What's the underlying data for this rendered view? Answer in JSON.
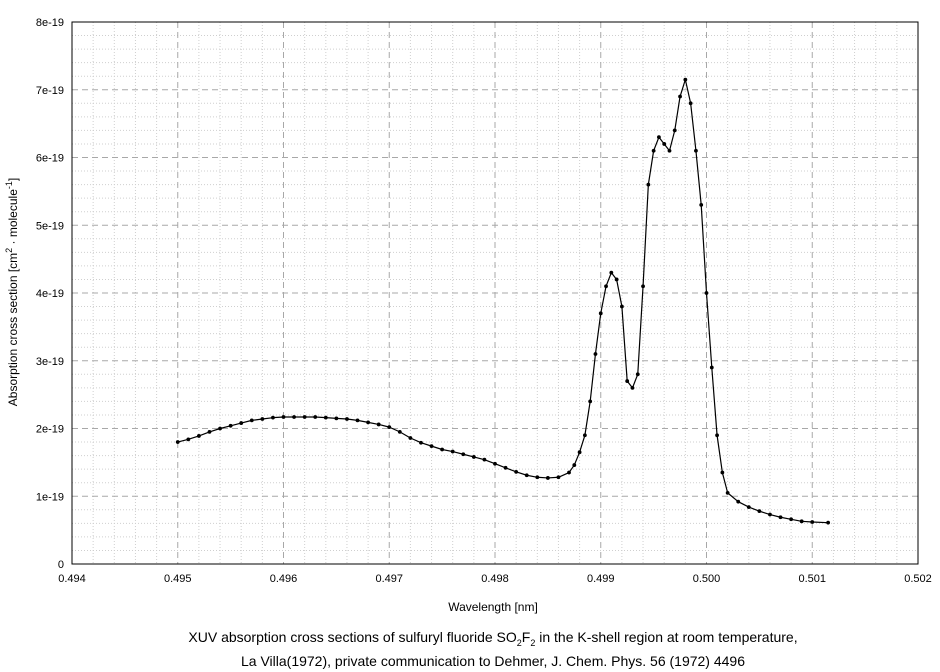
{
  "chart_data": {
    "type": "line",
    "xlabel": "Wavelength [nm]",
    "ylabel": {
      "prefix": "Absorption cross section [cm",
      "sup1": "2",
      "mid": " · molecule",
      "sup2": "-1",
      "suffix": "]"
    },
    "xlim": [
      0.494,
      0.502
    ],
    "ylim": [
      0,
      8e-19
    ],
    "x_ticks": [
      "0.494",
      "0.495",
      "0.496",
      "0.497",
      "0.498",
      "0.499",
      "0.500",
      "0.501",
      "0.502"
    ],
    "y_ticks": [
      "0",
      "1e-19",
      "2e-19",
      "3e-19",
      "4e-19",
      "5e-19",
      "6e-19",
      "7e-19",
      "8e-19"
    ],
    "grid": true,
    "series": [
      {
        "color": "#000000",
        "marker": "dot",
        "x": [
          0.495,
          0.4951,
          0.4952,
          0.4953,
          0.4954,
          0.4955,
          0.4956,
          0.4957,
          0.4958,
          0.4959,
          0.496,
          0.4961,
          0.4962,
          0.4963,
          0.4964,
          0.4965,
          0.4966,
          0.4967,
          0.4968,
          0.4969,
          0.497,
          0.4971,
          0.4972,
          0.4973,
          0.4974,
          0.4975,
          0.4976,
          0.4977,
          0.4978,
          0.4979,
          0.498,
          0.4981,
          0.4982,
          0.4983,
          0.4984,
          0.4985,
          0.4986,
          0.4987,
          0.49875,
          0.4988,
          0.49885,
          0.4989,
          0.49895,
          0.499,
          0.49905,
          0.4991,
          0.49915,
          0.4992,
          0.49925,
          0.4993,
          0.49935,
          0.4994,
          0.49945,
          0.4995,
          0.49955,
          0.4996,
          0.49965,
          0.4997,
          0.49975,
          0.4998,
          0.49985,
          0.4999,
          0.49995,
          0.5,
          0.50005,
          0.5001,
          0.50015,
          0.5002,
          0.5003,
          0.5004,
          0.5005,
          0.5006,
          0.5007,
          0.5008,
          0.5009,
          0.501,
          0.50115
        ],
        "y": [
          1.8e-19,
          1.84e-19,
          1.89e-19,
          1.95e-19,
          2e-19,
          2.04e-19,
          2.08e-19,
          2.12e-19,
          2.14e-19,
          2.16e-19,
          2.17e-19,
          2.17e-19,
          2.17e-19,
          2.17e-19,
          2.16e-19,
          2.15e-19,
          2.14e-19,
          2.12e-19,
          2.09e-19,
          2.06e-19,
          2.02e-19,
          1.95e-19,
          1.86e-19,
          1.79e-19,
          1.74e-19,
          1.69e-19,
          1.66e-19,
          1.62e-19,
          1.58e-19,
          1.54e-19,
          1.48e-19,
          1.42e-19,
          1.36e-19,
          1.31e-19,
          1.28e-19,
          1.27e-19,
          1.28e-19,
          1.35e-19,
          1.46e-19,
          1.65e-19,
          1.9e-19,
          2.4e-19,
          3.1e-19,
          3.7e-19,
          4.1e-19,
          4.3e-19,
          4.2e-19,
          3.8e-19,
          2.7e-19,
          2.6e-19,
          2.8e-19,
          4.1e-19,
          5.6e-19,
          6.1e-19,
          6.3e-19,
          6.2e-19,
          6.1e-19,
          6.4e-19,
          6.9e-19,
          7.15e-19,
          6.8e-19,
          6.1e-19,
          5.3e-19,
          4e-19,
          2.9e-19,
          1.9e-19,
          1.35e-19,
          1.05e-19,
          9.2e-20,
          8.4e-20,
          7.8e-20,
          7.3e-20,
          6.9e-20,
          6.6e-20,
          6.3e-20,
          6.2e-20,
          6.1e-20
        ]
      }
    ]
  },
  "caption": {
    "line1_prefix": "XUV absorption cross sections of sulfuryl fluoride SO",
    "sub1": "2",
    "line1_mid": "F",
    "sub2": "2",
    "line1_suffix": " in the K-shell region at room temperature,",
    "line2": "La Villa(1972), private communication to Dehmer, J. Chem. Phys. 56 (1972) 4496"
  }
}
